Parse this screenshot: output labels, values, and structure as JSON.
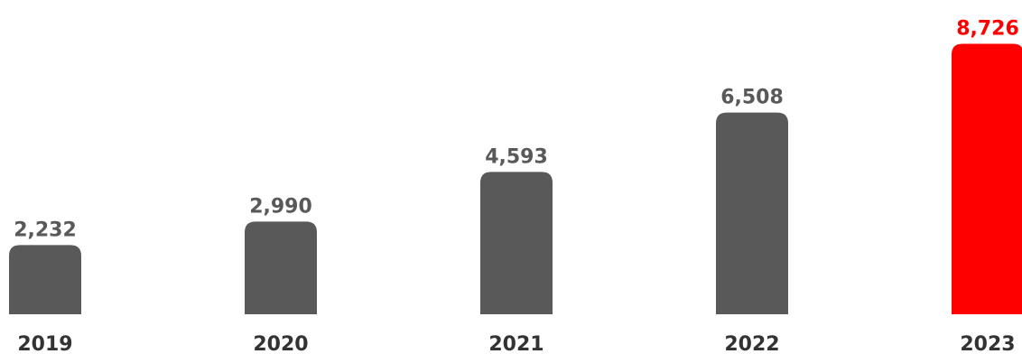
{
  "chart_data": {
    "type": "bar",
    "title": "",
    "xlabel": "",
    "ylabel": "",
    "categories": [
      "2019",
      "2020",
      "2021",
      "2022",
      "2023"
    ],
    "values": [
      2232,
      2990,
      4593,
      6508,
      8726
    ],
    "value_labels": [
      "2,232",
      "2,990",
      "4,593",
      "6,508",
      "8,726"
    ],
    "ylim": [
      0,
      9500
    ],
    "grid": false,
    "legend": "none",
    "colors": {
      "default_bar": "#595959",
      "highlight_bar": "#ff0000",
      "default_label": "#595959",
      "highlight_label": "#ff0000",
      "tick_label": "#333333"
    },
    "highlight_index": 4
  }
}
